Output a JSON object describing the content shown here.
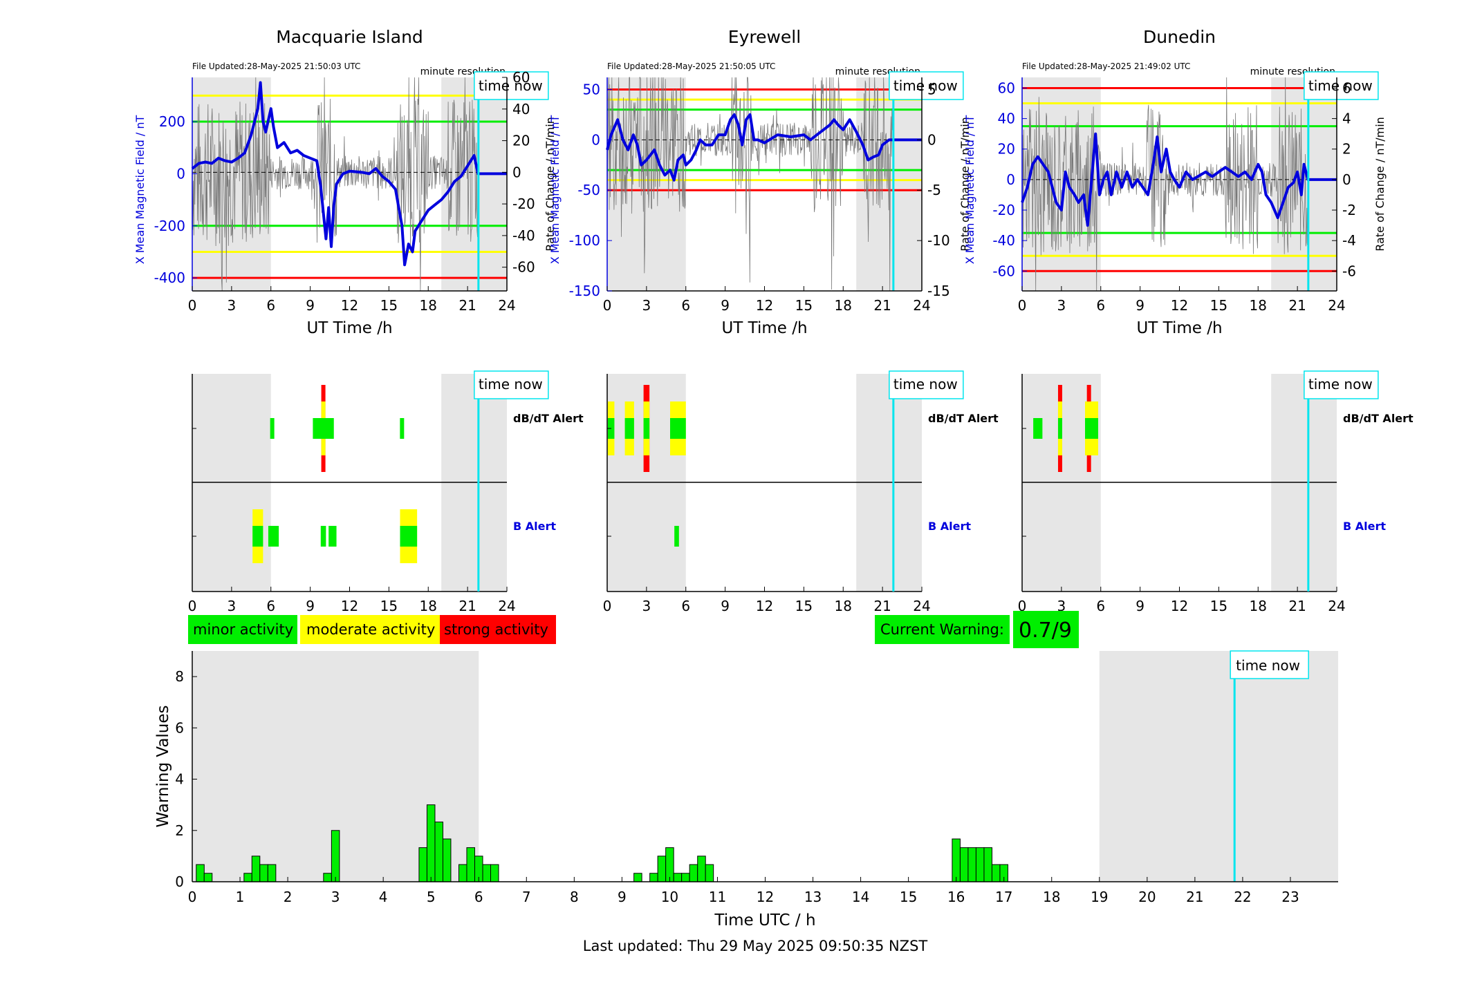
{
  "footer": {
    "last_updated": "Last updated: Thu 29 May 2025 09:50:35 NZST"
  },
  "colors": {
    "minor": "#00ee00",
    "moderate": "#ffff00",
    "strong": "#ff0000",
    "now_line": "#00e5ee",
    "shade": "#e6e6e6",
    "field": "#0000dd",
    "rate": "#777777"
  },
  "time_now_label": "time now",
  "resolution_label": "minute resolution",
  "alert_labels": {
    "dbdt": "dB/dT Alert",
    "b": "B Alert"
  },
  "legend": {
    "minor": "minor activity",
    "moderate": "moderate activity",
    "strong": "strong activity"
  },
  "current_warning": {
    "label": "Current Warning:",
    "value": "0.7/9"
  },
  "stations": [
    {
      "name": "Macquarie Island",
      "file_updated": "File Updated:28-May-2025 21:50:03 UTC",
      "ylabel_left": "X Mean Magnetic Field / nT",
      "ylabel_right": "Rate of Change / nT/min",
      "xlabel": "UT Time /h",
      "left_ylim": [
        -450,
        370
      ],
      "left_ticks": [
        -400,
        -200,
        0,
        200
      ],
      "right_ylim": [
        -75,
        60
      ],
      "right_ticks": [
        -60,
        -40,
        -20,
        0,
        20,
        40,
        60
      ],
      "thresholds": [
        {
          "value": 300,
          "level": "moderate"
        },
        {
          "value": 200,
          "level": "minor"
        },
        {
          "value": -200,
          "level": "minor"
        },
        {
          "value": -300,
          "level": "moderate"
        },
        {
          "value": -400,
          "level": "strong"
        }
      ],
      "field_series": [
        [
          0,
          20
        ],
        [
          0.5,
          40
        ],
        [
          1,
          45
        ],
        [
          1.5,
          40
        ],
        [
          2,
          60
        ],
        [
          2.5,
          50
        ],
        [
          3,
          45
        ],
        [
          3.5,
          60
        ],
        [
          4,
          80
        ],
        [
          4.5,
          150
        ],
        [
          5,
          250
        ],
        [
          5.2,
          350
        ],
        [
          5.4,
          200
        ],
        [
          5.6,
          160
        ],
        [
          6,
          250
        ],
        [
          6.2,
          180
        ],
        [
          6.5,
          100
        ],
        [
          7,
          120
        ],
        [
          7.5,
          80
        ],
        [
          8,
          90
        ],
        [
          8.5,
          70
        ],
        [
          9,
          60
        ],
        [
          9.5,
          50
        ],
        [
          9.8,
          -50
        ],
        [
          10,
          -150
        ],
        [
          10.2,
          -250
        ],
        [
          10.4,
          -130
        ],
        [
          10.6,
          -280
        ],
        [
          10.8,
          -120
        ],
        [
          11,
          -40
        ],
        [
          11.5,
          0
        ],
        [
          12,
          10
        ],
        [
          13,
          5
        ],
        [
          13.5,
          0
        ],
        [
          14,
          20
        ],
        [
          14.5,
          -10
        ],
        [
          15,
          -30
        ],
        [
          15.5,
          -60
        ],
        [
          16,
          -200
        ],
        [
          16.2,
          -350
        ],
        [
          16.5,
          -270
        ],
        [
          16.8,
          -300
        ],
        [
          17,
          -220
        ],
        [
          17.5,
          -180
        ],
        [
          18,
          -140
        ],
        [
          18.5,
          -120
        ],
        [
          19,
          -100
        ],
        [
          19.5,
          -70
        ],
        [
          20,
          -30
        ],
        [
          20.5,
          -10
        ],
        [
          21,
          30
        ],
        [
          21.5,
          70
        ],
        [
          21.8,
          0
        ],
        [
          24,
          0
        ]
      ],
      "shade": [
        [
          0,
          6
        ],
        [
          19,
          24
        ]
      ],
      "now": 21.83,
      "dbdt_alerts": [
        {
          "t": 6.1,
          "w": 0.3,
          "level": "minor"
        },
        {
          "t": 10.0,
          "w": 1.6,
          "level": "minor"
        },
        {
          "t": 10.0,
          "w": 0.3,
          "level": "moderate",
          "tall": 1
        },
        {
          "t": 10.0,
          "w": 0.3,
          "level": "strong",
          "tall": 2
        },
        {
          "t": 16.0,
          "w": 0.3,
          "level": "minor"
        }
      ],
      "b_alerts": [
        {
          "t": 5.0,
          "w": 0.8,
          "level": "moderate",
          "tall": 1
        },
        {
          "t": 5.0,
          "w": 0.8,
          "level": "minor"
        },
        {
          "t": 6.2,
          "w": 0.8,
          "level": "minor"
        },
        {
          "t": 10.0,
          "w": 0.4,
          "level": "minor"
        },
        {
          "t": 10.7,
          "w": 0.6,
          "level": "minor"
        },
        {
          "t": 16.5,
          "w": 1.3,
          "level": "moderate",
          "tall": 1
        },
        {
          "t": 16.5,
          "w": 1.3,
          "level": "minor"
        }
      ]
    },
    {
      "name": "Eyrewell",
      "file_updated": "File Updated:28-May-2025 21:50:05 UTC",
      "ylabel_left": "X Mean Magnetic Field / nT",
      "ylabel_right": "Rate of Change / nT/min",
      "xlabel": "UT Time /h",
      "left_ylim": [
        -150,
        62
      ],
      "left_ticks": [
        -150,
        -100,
        -50,
        0,
        50
      ],
      "right_ylim": [
        -15,
        6.2
      ],
      "right_ticks": [
        -15,
        -10,
        -5,
        0,
        5
      ],
      "thresholds": [
        {
          "value": 50,
          "level": "strong"
        },
        {
          "value": 40,
          "level": "moderate"
        },
        {
          "value": 30,
          "level": "minor"
        },
        {
          "value": -30,
          "level": "minor"
        },
        {
          "value": -40,
          "level": "moderate"
        },
        {
          "value": -50,
          "level": "strong"
        }
      ],
      "field_series": [
        [
          0,
          -10
        ],
        [
          0.3,
          5
        ],
        [
          0.8,
          20
        ],
        [
          1.2,
          0
        ],
        [
          1.6,
          -10
        ],
        [
          2,
          5
        ],
        [
          2.3,
          -5
        ],
        [
          2.6,
          -25
        ],
        [
          3,
          -20
        ],
        [
          3.3,
          -15
        ],
        [
          3.6,
          -10
        ],
        [
          4,
          -25
        ],
        [
          4.4,
          -35
        ],
        [
          4.8,
          -30
        ],
        [
          5.1,
          -40
        ],
        [
          5.4,
          -20
        ],
        [
          5.8,
          -15
        ],
        [
          6,
          -25
        ],
        [
          6.4,
          -20
        ],
        [
          6.8,
          -10
        ],
        [
          7.1,
          0
        ],
        [
          7.5,
          -5
        ],
        [
          8,
          -5
        ],
        [
          8.5,
          5
        ],
        [
          9,
          5
        ],
        [
          9.4,
          20
        ],
        [
          9.7,
          25
        ],
        [
          10,
          15
        ],
        [
          10.3,
          -5
        ],
        [
          10.6,
          20
        ],
        [
          10.9,
          25
        ],
        [
          11.2,
          0
        ],
        [
          11.5,
          0
        ],
        [
          12,
          -3
        ],
        [
          13,
          5
        ],
        [
          14,
          3
        ],
        [
          15,
          5
        ],
        [
          15.5,
          0
        ],
        [
          16,
          5
        ],
        [
          16.5,
          10
        ],
        [
          17,
          15
        ],
        [
          17.3,
          20
        ],
        [
          17.6,
          15
        ],
        [
          18,
          10
        ],
        [
          18.5,
          20
        ],
        [
          19,
          8
        ],
        [
          19.5,
          -5
        ],
        [
          19.9,
          -20
        ],
        [
          20.3,
          -17
        ],
        [
          20.7,
          -15
        ],
        [
          21,
          -5
        ],
        [
          21.5,
          0
        ],
        [
          24,
          0
        ]
      ],
      "shade": [
        [
          0,
          6
        ],
        [
          19,
          24
        ]
      ],
      "now": 21.83,
      "dbdt_alerts": [
        {
          "t": 0.3,
          "w": 0.5,
          "level": "moderate",
          "tall": 1
        },
        {
          "t": 0.3,
          "w": 0.5,
          "level": "minor"
        },
        {
          "t": 1.7,
          "w": 0.7,
          "level": "moderate",
          "tall": 1
        },
        {
          "t": 1.7,
          "w": 0.7,
          "level": "minor"
        },
        {
          "t": 3.0,
          "w": 0.45,
          "level": "strong",
          "tall": 2
        },
        {
          "t": 3.0,
          "w": 0.45,
          "level": "moderate",
          "tall": 1
        },
        {
          "t": 3.0,
          "w": 0.45,
          "level": "minor"
        },
        {
          "t": 5.4,
          "w": 1.2,
          "level": "moderate",
          "tall": 1
        },
        {
          "t": 5.4,
          "w": 1.2,
          "level": "minor"
        }
      ],
      "b_alerts": [
        {
          "t": 5.3,
          "w": 0.35,
          "level": "minor"
        }
      ]
    },
    {
      "name": "Dunedin",
      "file_updated": "File Updated:28-May-2025 21:49:02 UTC",
      "ylabel_left": "X Mean Magnetic Field / nT",
      "ylabel_right": "Rate of Change / nT/min",
      "xlabel": "UT Time /h",
      "left_ylim": [
        -73,
        67
      ],
      "left_ticks": [
        -60,
        -40,
        -20,
        0,
        20,
        40,
        60
      ],
      "right_ylim": [
        -7.3,
        6.7
      ],
      "right_ticks": [
        -6,
        -4,
        -2,
        0,
        2,
        4,
        6
      ],
      "thresholds": [
        {
          "value": 60,
          "level": "strong"
        },
        {
          "value": 50,
          "level": "moderate"
        },
        {
          "value": 35,
          "level": "minor"
        },
        {
          "value": -35,
          "level": "minor"
        },
        {
          "value": -50,
          "level": "moderate"
        },
        {
          "value": -60,
          "level": "strong"
        }
      ],
      "field_series": [
        [
          0,
          -15
        ],
        [
          0.4,
          -5
        ],
        [
          0.8,
          10
        ],
        [
          1.2,
          15
        ],
        [
          1.6,
          10
        ],
        [
          2,
          5
        ],
        [
          2.3,
          -5
        ],
        [
          2.6,
          -15
        ],
        [
          3,
          -20
        ],
        [
          3.3,
          5
        ],
        [
          3.6,
          -5
        ],
        [
          4,
          -10
        ],
        [
          4.3,
          -15
        ],
        [
          4.7,
          -10
        ],
        [
          5,
          -30
        ],
        [
          5.3,
          0
        ],
        [
          5.6,
          30
        ],
        [
          5.9,
          -10
        ],
        [
          6.2,
          0
        ],
        [
          6.5,
          5
        ],
        [
          6.8,
          -10
        ],
        [
          7.2,
          5
        ],
        [
          7.6,
          -5
        ],
        [
          8,
          5
        ],
        [
          8.4,
          -5
        ],
        [
          8.8,
          0
        ],
        [
          9.2,
          -5
        ],
        [
          9.6,
          -10
        ],
        [
          10,
          10
        ],
        [
          10.3,
          28
        ],
        [
          10.6,
          5
        ],
        [
          11,
          20
        ],
        [
          11.3,
          5
        ],
        [
          11.6,
          0
        ],
        [
          12,
          -5
        ],
        [
          12.5,
          5
        ],
        [
          13,
          0
        ],
        [
          14,
          5
        ],
        [
          14.5,
          2
        ],
        [
          15,
          5
        ],
        [
          15.5,
          8
        ],
        [
          16,
          5
        ],
        [
          16.5,
          2
        ],
        [
          17,
          5
        ],
        [
          17.5,
          0
        ],
        [
          18,
          10
        ],
        [
          18.3,
          5
        ],
        [
          18.6,
          -10
        ],
        [
          19,
          -15
        ],
        [
          19.5,
          -25
        ],
        [
          19.9,
          -15
        ],
        [
          20.3,
          -5
        ],
        [
          20.7,
          -2
        ],
        [
          21,
          5
        ],
        [
          21.3,
          -10
        ],
        [
          21.5,
          10
        ],
        [
          21.8,
          0
        ],
        [
          24,
          0
        ]
      ],
      "shade": [
        [
          0,
          6
        ],
        [
          19,
          24
        ]
      ],
      "now": 21.83,
      "dbdt_alerts": [
        {
          "t": 1.2,
          "w": 0.7,
          "level": "minor"
        },
        {
          "t": 2.9,
          "w": 0.3,
          "level": "strong",
          "tall": 2
        },
        {
          "t": 2.9,
          "w": 0.3,
          "level": "moderate",
          "tall": 1
        },
        {
          "t": 2.9,
          "w": 0.3,
          "level": "minor"
        },
        {
          "t": 5.1,
          "w": 0.3,
          "level": "strong",
          "tall": 2
        },
        {
          "t": 5.3,
          "w": 1.0,
          "level": "moderate",
          "tall": 1
        },
        {
          "t": 5.3,
          "w": 1.0,
          "level": "minor"
        }
      ],
      "b_alerts": []
    }
  ],
  "chart_data": {
    "type": "bar",
    "ylabel": "Warning Values",
    "xlabel": "Time UTC / h",
    "ylim": [
      0,
      9
    ],
    "xlim": [
      0,
      24
    ],
    "yticks": [
      0,
      2,
      4,
      6,
      8
    ],
    "xticks": [
      0,
      1,
      2,
      3,
      4,
      5,
      6,
      7,
      8,
      9,
      10,
      11,
      12,
      13,
      14,
      15,
      16,
      17,
      18,
      19,
      20,
      21,
      22,
      23
    ],
    "shade": [
      [
        0,
        6
      ],
      [
        19,
        24
      ]
    ],
    "now": 21.83,
    "bin_width": 0.1667,
    "bars": [
      [
        0.167,
        0.67
      ],
      [
        0.333,
        0.33
      ],
      [
        1.167,
        0.33
      ],
      [
        1.333,
        1.0
      ],
      [
        1.5,
        0.67
      ],
      [
        1.667,
        0.67
      ],
      [
        2.833,
        0.33
      ],
      [
        3.0,
        2.0
      ],
      [
        4.833,
        1.33
      ],
      [
        5.0,
        3.0
      ],
      [
        5.167,
        2.33
      ],
      [
        5.333,
        1.67
      ],
      [
        5.667,
        0.67
      ],
      [
        5.833,
        1.33
      ],
      [
        6.0,
        1.0
      ],
      [
        6.167,
        0.67
      ],
      [
        6.333,
        0.67
      ],
      [
        9.333,
        0.33
      ],
      [
        9.667,
        0.33
      ],
      [
        9.833,
        1.0
      ],
      [
        10.0,
        1.33
      ],
      [
        10.167,
        0.33
      ],
      [
        10.333,
        0.33
      ],
      [
        10.5,
        0.67
      ],
      [
        10.667,
        1.0
      ],
      [
        10.833,
        0.67
      ],
      [
        16.0,
        1.67
      ],
      [
        16.167,
        1.33
      ],
      [
        16.333,
        1.33
      ],
      [
        16.5,
        1.33
      ],
      [
        16.667,
        1.33
      ],
      [
        16.833,
        0.67
      ],
      [
        17.0,
        0.67
      ]
    ]
  }
}
